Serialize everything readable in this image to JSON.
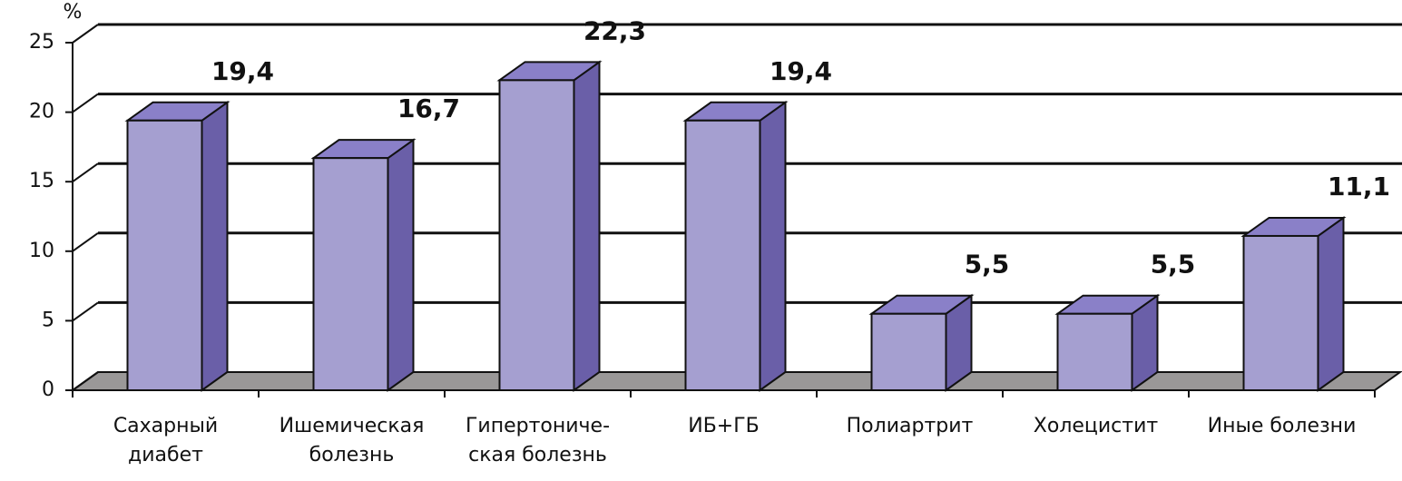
{
  "chart_data": {
    "type": "bar3d",
    "y_label": "%",
    "categories": [
      "Сахарный\nдиабет",
      "Ишемическая\nболезнь",
      "Гипертониче-\nская болезнь",
      "ИБ+ГБ",
      "Полиартрит",
      "Холецистит",
      "Иные болезни"
    ],
    "values": [
      19.4,
      16.7,
      22.3,
      19.4,
      5.5,
      5.5,
      11.1
    ],
    "value_labels": [
      "19,4",
      "16,7",
      "22,3",
      "19,4",
      "5,5",
      "5,5",
      "11,1"
    ],
    "color": "#a59fd0",
    "ylim": [
      0,
      25
    ],
    "yticks": [
      0,
      5,
      10,
      15,
      20,
      25
    ],
    "grid": true
  }
}
